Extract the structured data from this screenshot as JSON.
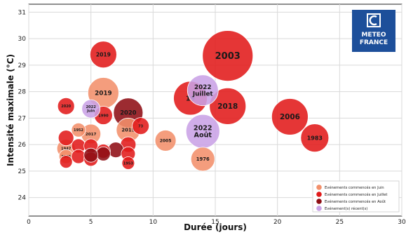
{
  "chart_data": {
    "type": "scatter",
    "title": "",
    "xlabel": "Durée (jours)",
    "ylabel": "Intensité maximale (°C)",
    "xlim": [
      0,
      30
    ],
    "ylim": [
      23.3,
      31.3
    ],
    "x_ticks": [
      0,
      5,
      10,
      15,
      20,
      25,
      30
    ],
    "y_ticks": [
      24,
      25,
      26,
      27,
      28,
      29,
      30,
      31
    ],
    "grid": true,
    "legend_position": "bottom-right",
    "logo": {
      "line1": "METEO",
      "line2": "FRANCE",
      "bg_color": "#1d4f9a"
    },
    "series": [
      {
        "name": "Evénements commencés en Juin",
        "color": "#f2906b",
        "points": [
          {
            "x": 6,
            "y": 27.95,
            "size": 22,
            "label": "2019"
          },
          {
            "x": 8,
            "y": 26.55,
            "size": 17,
            "label": "2015"
          },
          {
            "x": 5,
            "y": 26.4,
            "size": 14,
            "label": "2017"
          },
          {
            "x": 4,
            "y": 26.55,
            "size": 10,
            "label": "1952"
          },
          {
            "x": 3,
            "y": 25.85,
            "size": 13,
            "label": "1947"
          },
          {
            "x": 3,
            "y": 25.55,
            "size": 10,
            "label": "2005"
          },
          {
            "x": 11,
            "y": 26.15,
            "size": 15,
            "label": "2005"
          },
          {
            "x": 14,
            "y": 25.45,
            "size": 17,
            "label": "1976"
          }
        ]
      },
      {
        "name": "Evénements commencés en Juillet",
        "color": "#e11a1a",
        "points": [
          {
            "x": 16,
            "y": 29.35,
            "size": 36,
            "label": "2003"
          },
          {
            "x": 21,
            "y": 27.05,
            "size": 26,
            "label": "2006"
          },
          {
            "x": 23,
            "y": 26.25,
            "size": 20,
            "label": "1983"
          },
          {
            "x": 16,
            "y": 27.45,
            "size": 26,
            "label": "2018"
          },
          {
            "x": 13,
            "y": 27.75,
            "size": 24,
            "label": "19"
          },
          {
            "x": 6,
            "y": 29.4,
            "size": 19,
            "label": "2019"
          },
          {
            "x": 3,
            "y": 27.45,
            "size": 12,
            "label": "2020"
          },
          {
            "x": 6,
            "y": 27.1,
            "size": 13,
            "label": "1990"
          },
          {
            "x": 9,
            "y": 26.7,
            "size": 12,
            "label": "73"
          },
          {
            "x": 3,
            "y": 26.25,
            "size": 11,
            "label": ""
          },
          {
            "x": 4,
            "y": 25.95,
            "size": 10,
            "label": ""
          },
          {
            "x": 5,
            "y": 25.95,
            "size": 10,
            "label": ""
          },
          {
            "x": 4,
            "y": 25.55,
            "size": 10,
            "label": ""
          },
          {
            "x": 3,
            "y": 25.35,
            "size": 9,
            "label": ""
          },
          {
            "x": 5,
            "y": 25.45,
            "size": 10,
            "label": ""
          },
          {
            "x": 6,
            "y": 25.75,
            "size": 10,
            "label": ""
          },
          {
            "x": 8,
            "y": 26.0,
            "size": 11,
            "label": ""
          },
          {
            "x": 8,
            "y": 25.65,
            "size": 10,
            "label": ""
          },
          {
            "x": 8,
            "y": 25.3,
            "size": 9,
            "label": "1953"
          }
        ]
      },
      {
        "name": "Evénements commencés en Août",
        "color": "#8e0e14",
        "points": [
          {
            "x": 8,
            "y": 27.2,
            "size": 21,
            "label": "2020"
          },
          {
            "x": 7,
            "y": 25.8,
            "size": 11,
            "label": ""
          },
          {
            "x": 6,
            "y": 25.65,
            "size": 10,
            "label": ""
          },
          {
            "x": 5,
            "y": 25.6,
            "size": 10,
            "label": ""
          }
        ]
      },
      {
        "name": "Evénement(s) récent(s)",
        "color": "#c9a2e6",
        "points": [
          {
            "x": 14,
            "y": 28.05,
            "size": 22,
            "label": "2022 Juillet"
          },
          {
            "x": 14,
            "y": 26.5,
            "size": 24,
            "label": "2022 Août"
          },
          {
            "x": 5,
            "y": 27.35,
            "size": 13,
            "label": "2022 Juin"
          }
        ]
      }
    ]
  }
}
